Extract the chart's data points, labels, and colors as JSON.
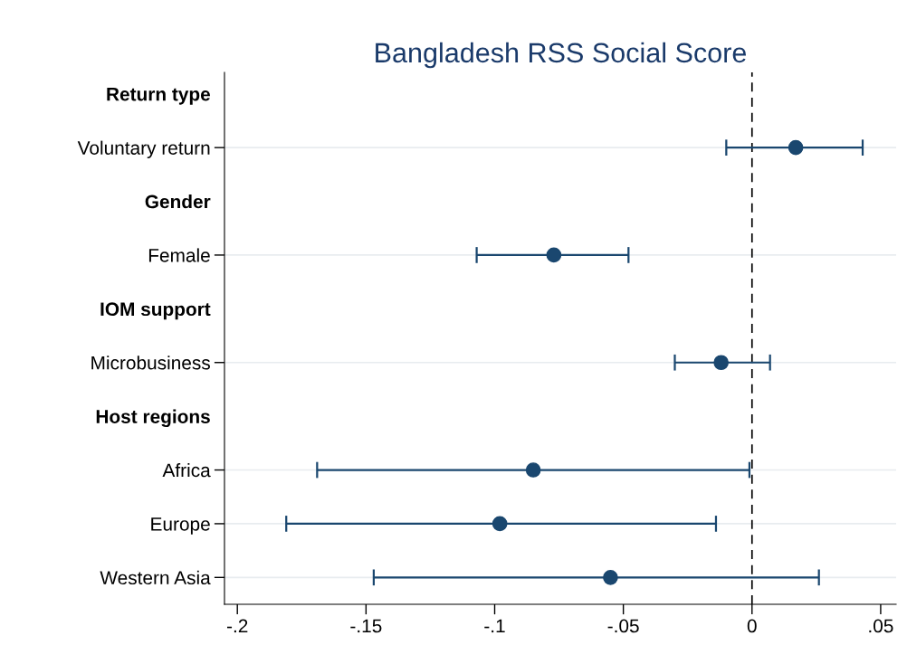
{
  "chart_data": {
    "type": "scatter",
    "orientation": "horizontal",
    "title": "Bangladesh RSS Social Score",
    "categories": [
      "Return type",
      "Voluntary return",
      "Gender",
      "Female",
      "IOM support",
      "Microbusiness",
      "Host regions",
      "Africa",
      "Europe",
      "Western Asia"
    ],
    "values": [
      null,
      0.017,
      null,
      -0.077,
      null,
      -0.012,
      null,
      -0.085,
      -0.098,
      -0.055
    ],
    "errors": [
      null,
      [
        -0.01,
        0.043
      ],
      null,
      [
        -0.107,
        -0.048
      ],
      null,
      [
        -0.03,
        0.007
      ],
      null,
      [
        -0.169,
        -0.001
      ],
      [
        -0.181,
        -0.014
      ],
      [
        -0.147,
        0.026
      ]
    ],
    "color": "#1a476f",
    "marker": "circle",
    "xlim": [
      -0.205,
      0.056
    ],
    "xticks": [
      {
        "value": -0.2,
        "label": "-.2"
      },
      {
        "value": -0.15,
        "label": "-.15"
      },
      {
        "value": -0.1,
        "label": "-.1"
      },
      {
        "value": -0.05,
        "label": "-.05"
      },
      0,
      {
        "value": 0.05,
        "label": ".05"
      }
    ],
    "ref_lines": [
      {
        "axis": "x",
        "value": 0,
        "color": "#000000",
        "line_style": "dashed"
      }
    ],
    "grid": "y"
  }
}
